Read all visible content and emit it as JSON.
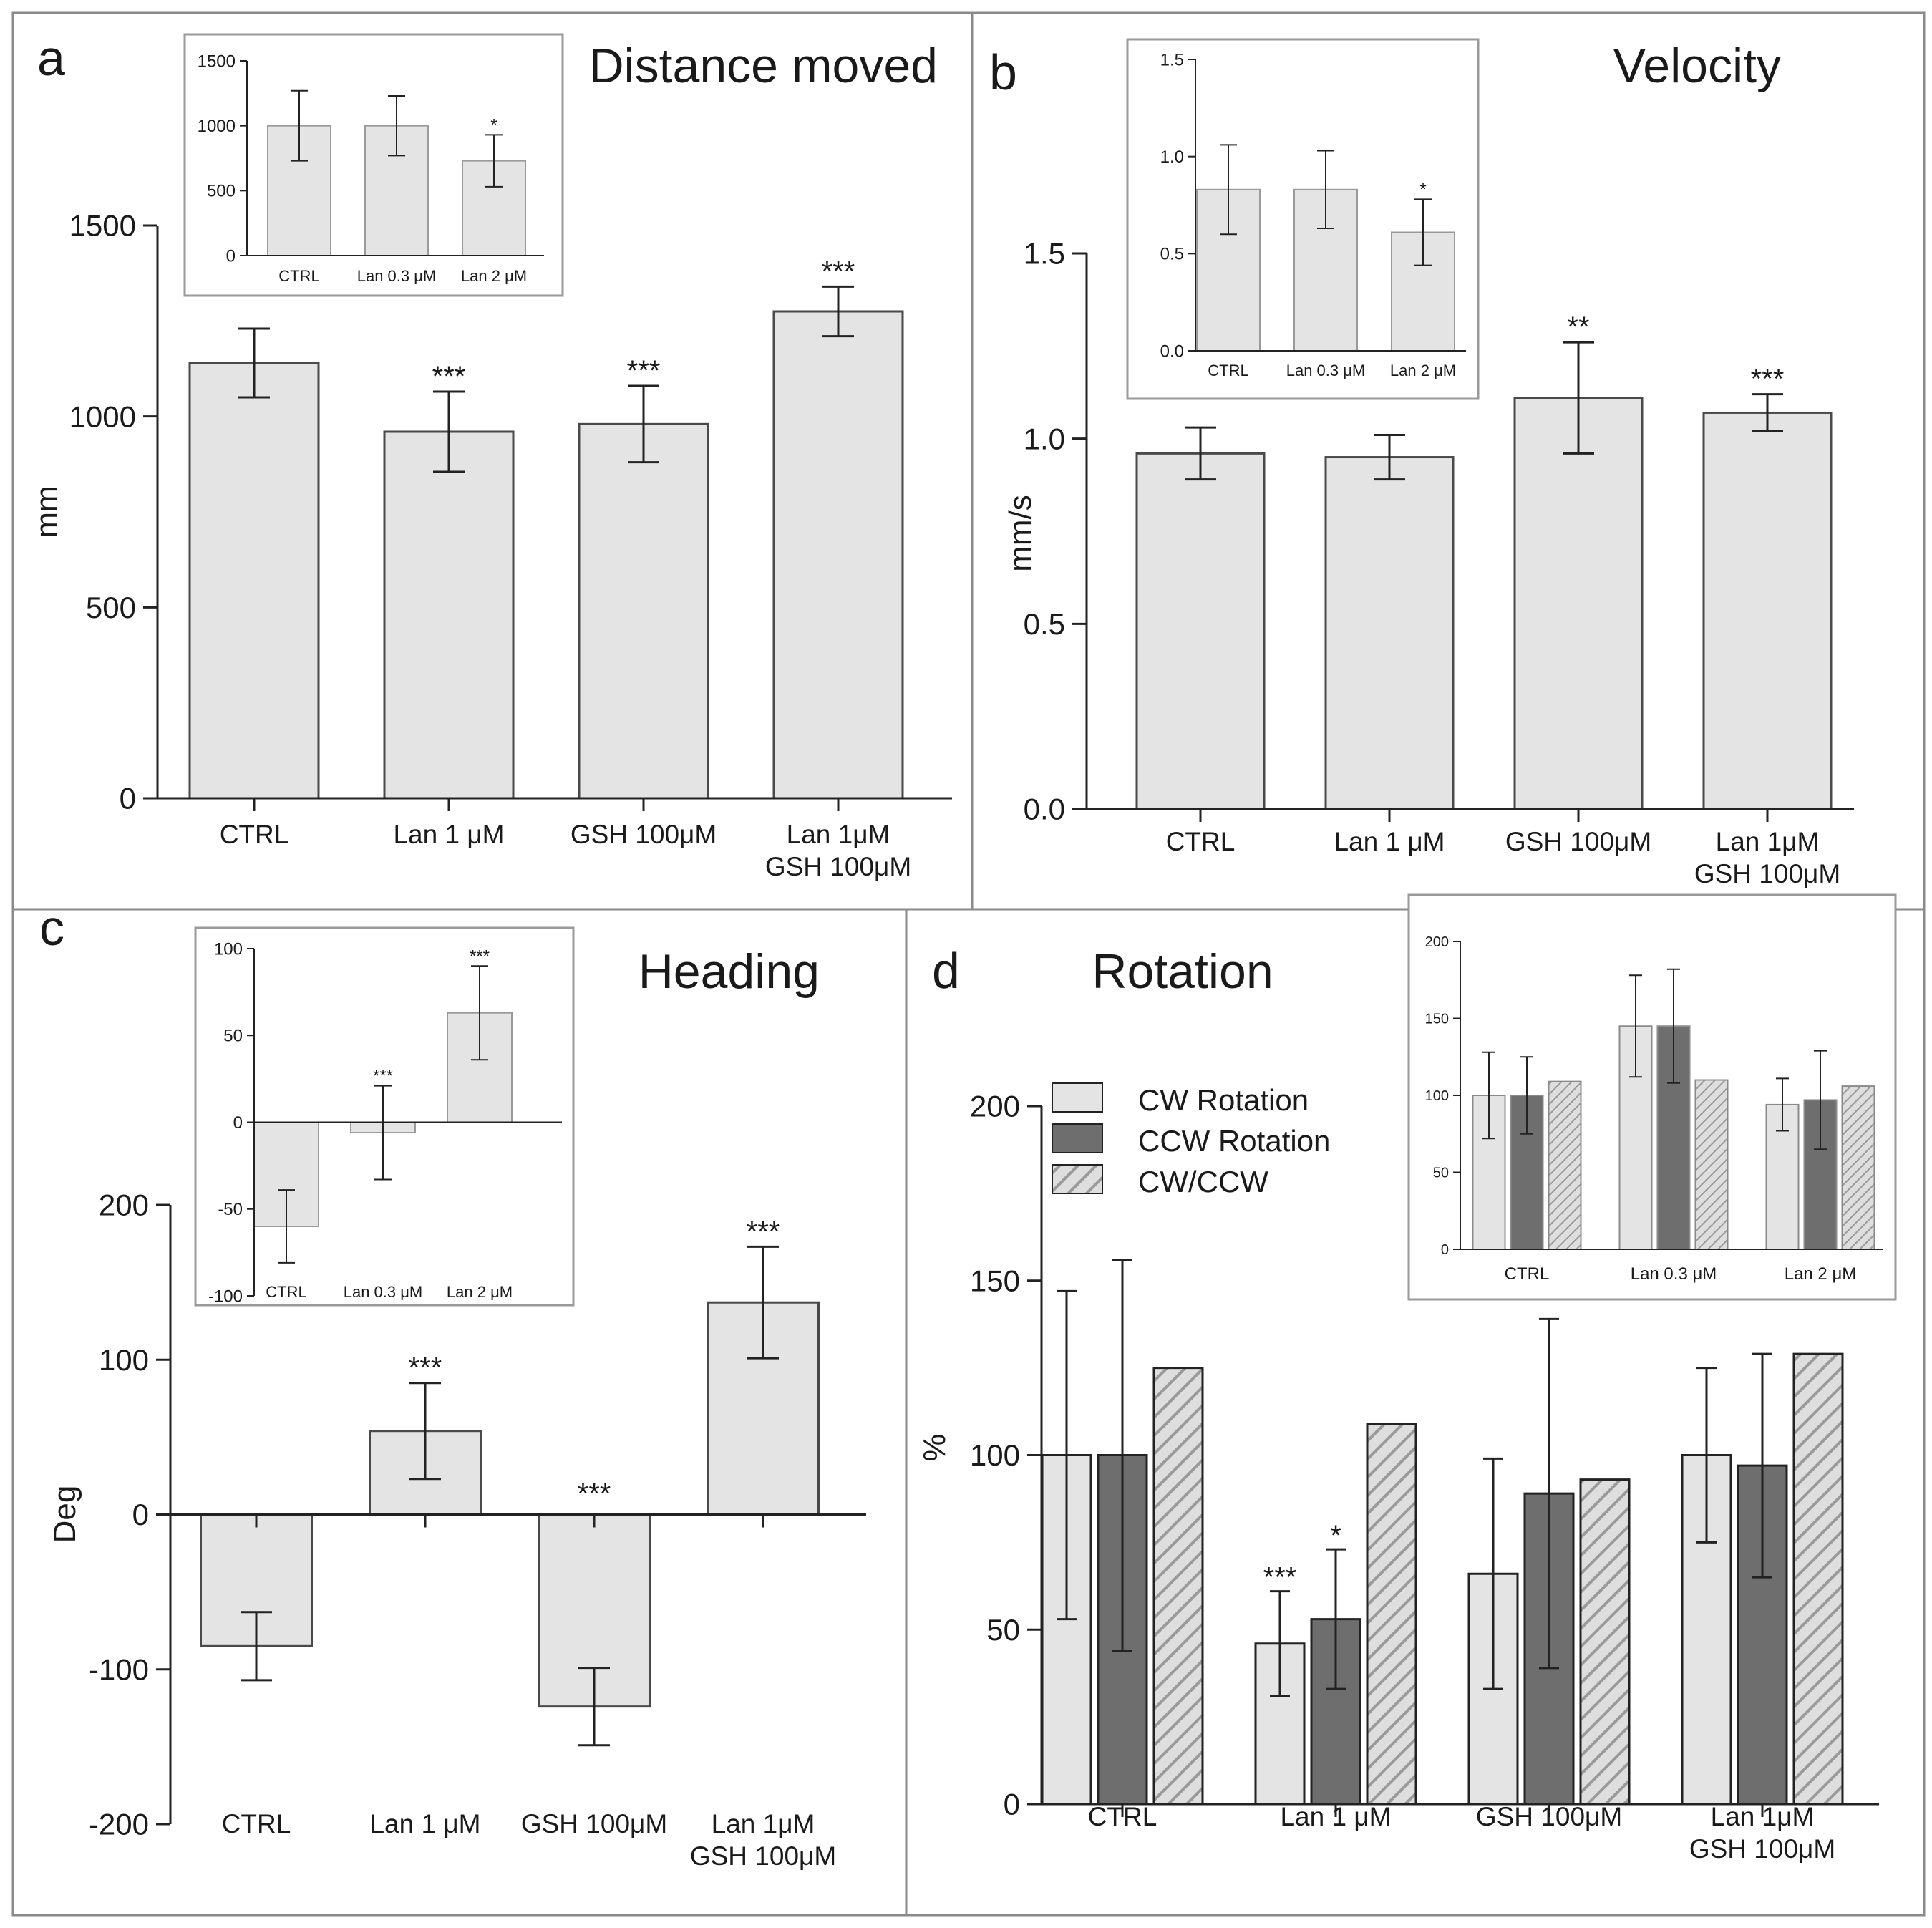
{
  "colors": {
    "bar_light": "#e4e4e4",
    "bar_dark": "#6e6e6e",
    "bar_outline": "#4a4a4a",
    "hatch_bg": "#dedede",
    "hatch_line": "#9a9a9a",
    "axis": "#222222",
    "frame": "#8a8a8a",
    "inset_frame": "#9a9a9a"
  },
  "chart_data": [
    {
      "id": "a",
      "panel_letter": "a",
      "title": "Distance moved",
      "type": "bar",
      "ylabel": "mm",
      "ylim": [
        0,
        1500
      ],
      "yticks": [
        "0",
        "500",
        "1000",
        "1500"
      ],
      "categories": [
        [
          "CTRL"
        ],
        [
          "Lan 1 μM"
        ],
        [
          "GSH 100μM"
        ],
        [
          "Lan 1μM",
          "GSH 100μM"
        ]
      ],
      "series": [
        {
          "name": "Distance moved",
          "values": [
            1140,
            960,
            980,
            1275
          ],
          "errors": [
            90,
            105,
            100,
            65
          ]
        }
      ],
      "annotations": [
        "",
        "***",
        "***",
        "***"
      ],
      "inset": {
        "ylim": [
          0,
          1500
        ],
        "yticks": [
          "0",
          "500",
          "1000",
          "1500"
        ],
        "categories": [
          "CTRL",
          "Lan 0.3 μM",
          "Lan 2 μM"
        ],
        "values": [
          1000,
          1000,
          730
        ],
        "errors": [
          270,
          230,
          200
        ],
        "annotations": [
          "",
          "",
          "*"
        ]
      }
    },
    {
      "id": "b",
      "panel_letter": "b",
      "title": "Velocity",
      "type": "bar",
      "ylabel": "mm/s",
      "ylim": [
        0,
        1.5
      ],
      "yticks": [
        "0.0",
        "0.5",
        "1.0",
        "1.5"
      ],
      "categories": [
        [
          "CTRL"
        ],
        [
          "Lan 1 μM"
        ],
        [
          "GSH 100μM"
        ],
        [
          "Lan 1μM",
          "GSH 100μM"
        ]
      ],
      "series": [
        {
          "name": "Velocity",
          "values": [
            0.96,
            0.95,
            1.11,
            1.07
          ],
          "errors": [
            0.07,
            0.06,
            0.15,
            0.05
          ]
        }
      ],
      "annotations": [
        "",
        "",
        "**",
        "***"
      ],
      "inset": {
        "ylim": [
          0,
          1.5
        ],
        "yticks": [
          "0.0",
          "0.5",
          "1.0",
          "1.5"
        ],
        "categories": [
          "CTRL",
          "Lan 0.3 μM",
          "Lan 2 μM"
        ],
        "values": [
          0.83,
          0.83,
          0.61
        ],
        "errors": [
          0.23,
          0.2,
          0.17
        ],
        "annotations": [
          "",
          "",
          "*"
        ]
      }
    },
    {
      "id": "c",
      "panel_letter": "c",
      "title": "Heading",
      "type": "bar",
      "ylabel": "Deg",
      "ylim": [
        -200,
        200
      ],
      "yticks": [
        "-200",
        "-100",
        "0",
        "100",
        "200"
      ],
      "categories": [
        [
          "CTRL"
        ],
        [
          "Lan 1 μM"
        ],
        [
          "GSH 100μM"
        ],
        [
          "Lan 1μM",
          "GSH 100μM"
        ]
      ],
      "series": [
        {
          "name": "Heading",
          "values": [
            -85,
            54,
            -124,
            137
          ],
          "errors": [
            22,
            31,
            25,
            36
          ]
        }
      ],
      "annotations": [
        "",
        "***",
        "***",
        "***"
      ],
      "inset": {
        "ylim": [
          -100,
          100
        ],
        "yticks": [
          "-100",
          "-50",
          "0",
          "50",
          "100"
        ],
        "categories": [
          "CTRL",
          "Lan 0.3 μM",
          "Lan 2 μM"
        ],
        "values": [
          -60,
          -6,
          63
        ],
        "errors": [
          21,
          27,
          27
        ],
        "annotations": [
          "",
          "***",
          "***"
        ]
      }
    },
    {
      "id": "d",
      "panel_letter": "d",
      "title": "Rotation",
      "type": "bar",
      "ylabel": "%",
      "ylim": [
        0,
        200
      ],
      "yticks": [
        "0",
        "50",
        "100",
        "150",
        "200"
      ],
      "categories": [
        [
          "CTRL"
        ],
        [
          "Lan 1 μM"
        ],
        [
          "GSH 100μM"
        ],
        [
          "Lan 1μM",
          "GSH 100μM"
        ]
      ],
      "legend_position": "top-left",
      "series": [
        {
          "name": "CW Rotation",
          "style": "light",
          "values": [
            100,
            46,
            66,
            100
          ],
          "errors": [
            47,
            15,
            33,
            25
          ]
        },
        {
          "name": "CCW Rotation",
          "style": "dark",
          "values": [
            100,
            53,
            89,
            97
          ],
          "errors": [
            56,
            20,
            50,
            32
          ]
        },
        {
          "name": "CW/CCW",
          "style": "hatch",
          "values": [
            125,
            109,
            93,
            129
          ],
          "errors": [
            0,
            0,
            0,
            0
          ]
        }
      ],
      "annotations": [
        [
          "",
          "",
          ""
        ],
        [
          "***",
          "*",
          ""
        ],
        [
          "",
          "",
          ""
        ],
        [
          "",
          "",
          ""
        ]
      ],
      "inset": {
        "ylim": [
          0,
          200
        ],
        "yticks": [
          "0",
          "50",
          "100",
          "150",
          "200"
        ],
        "categories": [
          "CTRL",
          "Lan 0.3 μM",
          "Lan 2 μM"
        ],
        "series": [
          {
            "name": "CW Rotation",
            "style": "light",
            "values": [
              100,
              145,
              94
            ],
            "errors": [
              28,
              33,
              17
            ]
          },
          {
            "name": "CCW Rotation",
            "style": "dark",
            "values": [
              100,
              145,
              97
            ],
            "errors": [
              25,
              37,
              32
            ]
          },
          {
            "name": "CW/CCW",
            "style": "hatch",
            "values": [
              109,
              110,
              106
            ],
            "errors": [
              0,
              0,
              0
            ]
          }
        ]
      }
    }
  ]
}
